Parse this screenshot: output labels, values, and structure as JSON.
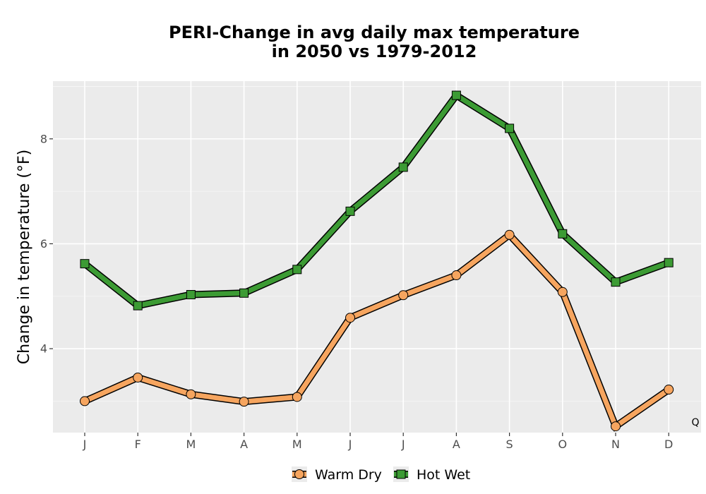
{
  "chart_data": {
    "type": "line",
    "title_lines": [
      "PERI-Change in avg daily max temperature",
      "in 2050 vs 1979-2012"
    ],
    "xlabel": "",
    "ylabel": "Change in temperature (°F)",
    "categories": [
      "J",
      "F",
      "M",
      "A",
      "M",
      "J",
      "J",
      "A",
      "S",
      "O",
      "N",
      "D"
    ],
    "y_ticks": [
      4,
      6,
      8
    ],
    "ylim": [
      2.4,
      9.1
    ],
    "grid": true,
    "legend_position": "bottom",
    "series": [
      {
        "name": "Warm Dry",
        "marker": "circle",
        "color": "#f6a55f",
        "values": [
          3.0,
          3.45,
          3.13,
          2.99,
          3.08,
          4.59,
          5.02,
          5.4,
          6.17,
          5.08,
          2.52,
          3.22
        ]
      },
      {
        "name": "Hot Wet",
        "marker": "square",
        "color": "#3c9b34",
        "values": [
          5.62,
          4.82,
          5.03,
          5.06,
          5.51,
          6.62,
          7.46,
          8.83,
          8.2,
          6.19,
          5.27,
          5.64
        ]
      }
    ],
    "corner_note": "Q"
  }
}
